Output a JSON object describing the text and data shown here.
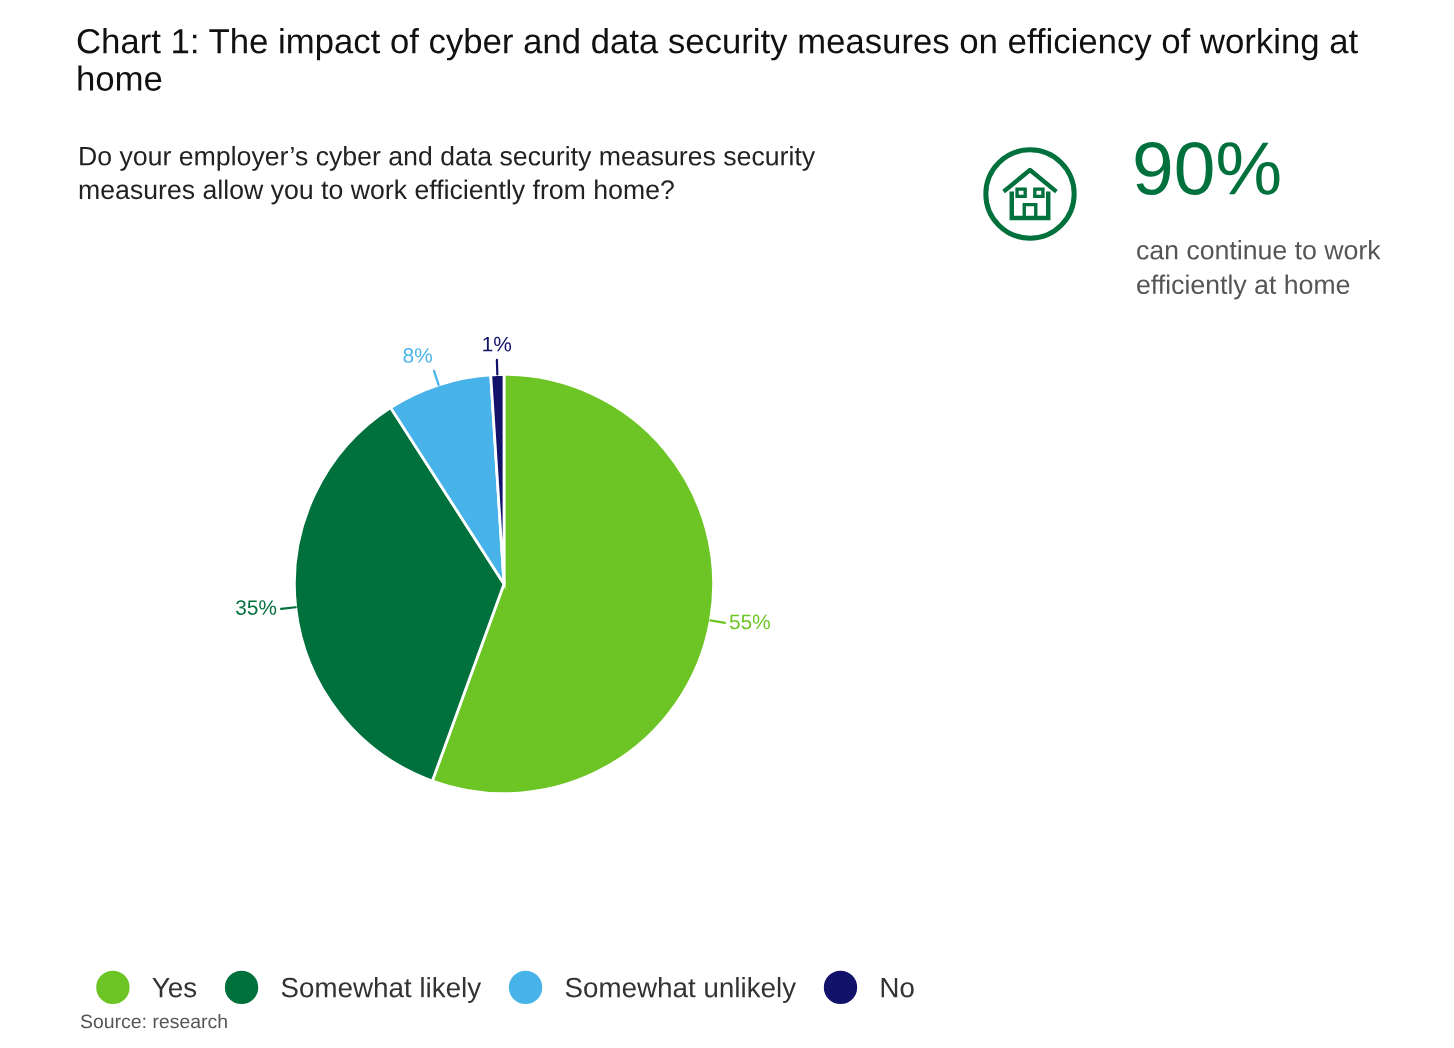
{
  "chart_data": {
    "type": "pie",
    "title": "Chart 1: The impact of cyber and data security measures on efficiency of working at home",
    "subtitle": "Do your employer’s cyber and data security measures security measures allow you to work efficiently from home?",
    "categories": [
      "Yes",
      "Somewhat likely",
      "Somewhat unlikely",
      "No"
    ],
    "values": [
      55,
      35,
      8,
      1
    ],
    "colors": [
      "#6cc524",
      "#00703c",
      "#48b3e8",
      "#12126b"
    ],
    "value_labels": [
      "55%",
      "35%",
      "8%",
      "1%"
    ],
    "legend": "bottom",
    "annotations": [
      "90%",
      "can continue to work efficiently at home",
      "Source: research"
    ]
  }
}
